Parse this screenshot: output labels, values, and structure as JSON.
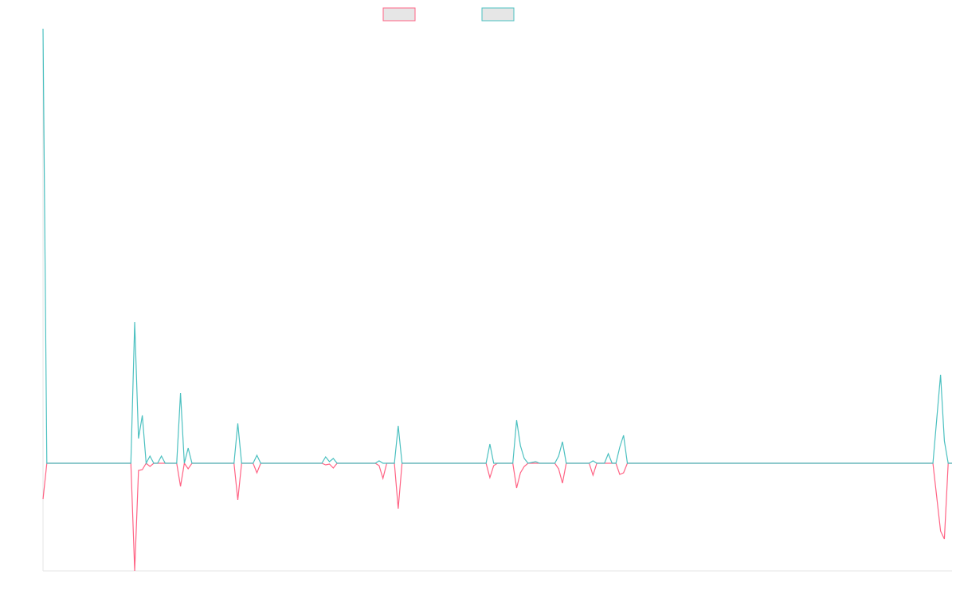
{
  "chart_data": {
    "type": "line",
    "x": [
      0,
      1,
      23,
      24,
      25,
      26,
      27,
      28,
      29,
      30,
      31,
      32,
      35,
      36,
      37,
      38,
      39,
      50,
      51,
      52,
      55,
      56,
      57,
      73,
      74,
      75,
      76,
      77,
      87,
      88,
      89,
      90,
      92,
      93,
      94,
      116,
      117,
      118,
      119,
      123,
      124,
      125,
      126,
      127,
      129,
      130,
      134,
      135,
      136,
      137,
      143,
      144,
      145,
      147,
      148,
      149,
      150,
      151,
      152,
      153,
      233,
      235,
      236,
      237,
      238
    ],
    "xlim": [
      0,
      238
    ],
    "ylim": [
      -135,
      545
    ],
    "series": [
      {
        "color": "#ff6384",
        "values": [
          -45,
          0,
          0,
          -135,
          -9,
          -8,
          0,
          -4,
          0,
          0,
          0,
          0,
          0,
          -29,
          0,
          -7,
          0,
          0,
          -46,
          0,
          0,
          -12,
          0,
          0,
          -2,
          -1,
          -6,
          0,
          0,
          -3,
          -19,
          0,
          0,
          -57,
          0,
          0,
          -18,
          -3,
          0,
          0,
          -31,
          -12,
          -4,
          0,
          0,
          0,
          0,
          -7,
          -25,
          0,
          0,
          -15,
          0,
          0,
          0,
          0,
          0,
          -14,
          -12,
          0,
          0,
          -85,
          -95,
          0,
          0
        ]
      },
      {
        "color": "#4bc0c0",
        "values": [
          545,
          0,
          0,
          177,
          31,
          60,
          0,
          9,
          0,
          0,
          9,
          0,
          0,
          88,
          0,
          19,
          0,
          0,
          50,
          0,
          0,
          10,
          0,
          0,
          8,
          2,
          6,
          0,
          0,
          3,
          0,
          0,
          0,
          47,
          0,
          0,
          24,
          0,
          0,
          0,
          54,
          22,
          6,
          0,
          2,
          0,
          0,
          9,
          27,
          0,
          0,
          3,
          0,
          0,
          12,
          0,
          0,
          20,
          35,
          0,
          0,
          111,
          28,
          0,
          0
        ]
      }
    ]
  }
}
